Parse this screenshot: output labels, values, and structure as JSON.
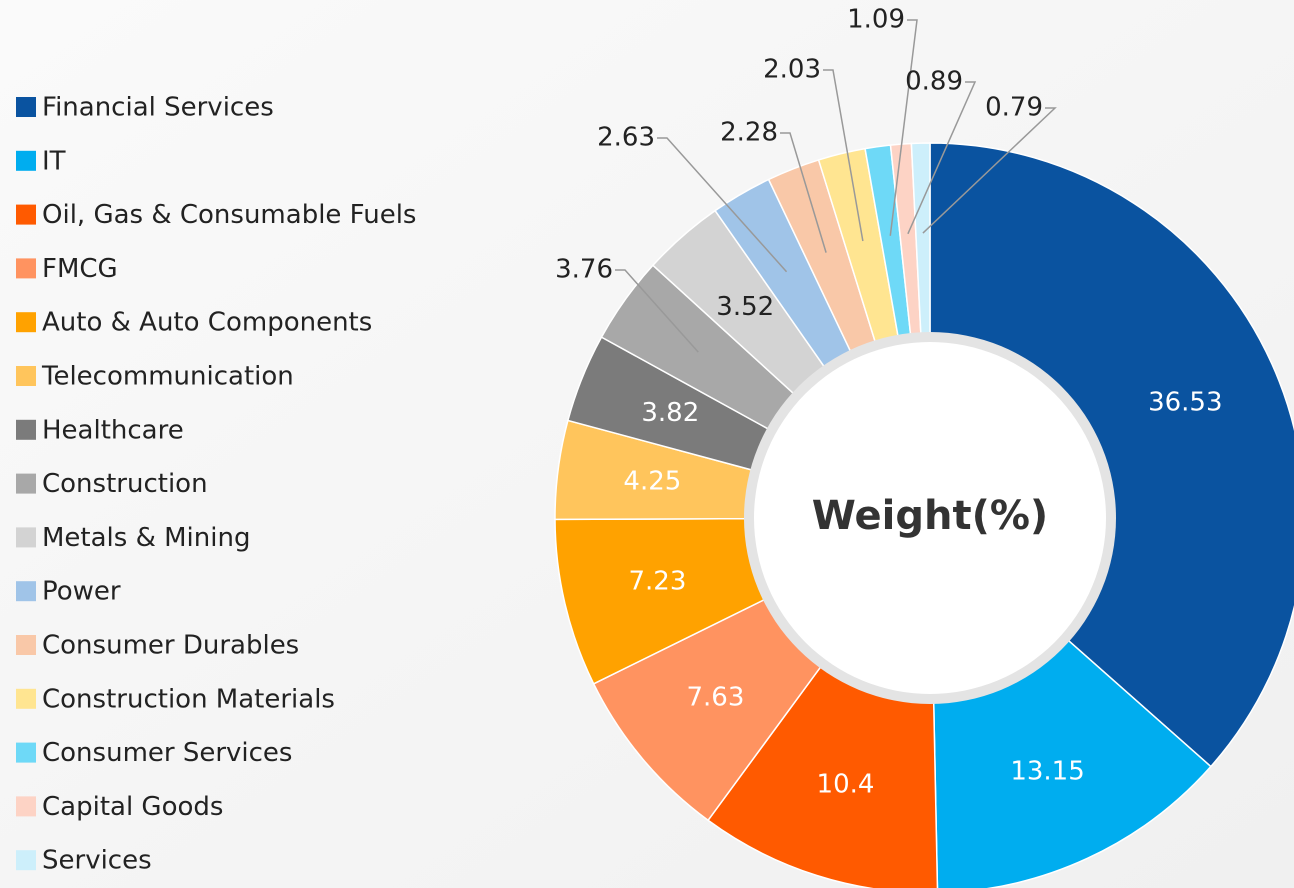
{
  "chart_data": {
    "type": "donut",
    "center_label": "Weight(%)",
    "categories": [
      "Financial Services",
      "IT",
      "Oil, Gas & Consumable Fuels",
      "FMCG",
      "Auto & Auto Components",
      "Telecommunication",
      "Healthcare",
      "Construction",
      "Metals & Mining",
      "Power",
      "Consumer Durables",
      "Construction Materials",
      "Consumer Services",
      "Capital Goods",
      "Services"
    ],
    "values": [
      36.53,
      13.15,
      10.4,
      7.63,
      7.23,
      4.25,
      3.82,
      3.76,
      3.52,
      2.63,
      2.28,
      2.03,
      1.09,
      0.89,
      0.79
    ],
    "colors": [
      "#0a53a0",
      "#00adef",
      "#ff5a00",
      "#ff9360",
      "#ffa200",
      "#ffc55c",
      "#7b7b7b",
      "#a8a8a8",
      "#d3d3d3",
      "#a0c4e8",
      "#f9c8a8",
      "#ffe591",
      "#6ed9f7",
      "#fdd3c5",
      "#cdeffb"
    ],
    "legend": "left"
  }
}
